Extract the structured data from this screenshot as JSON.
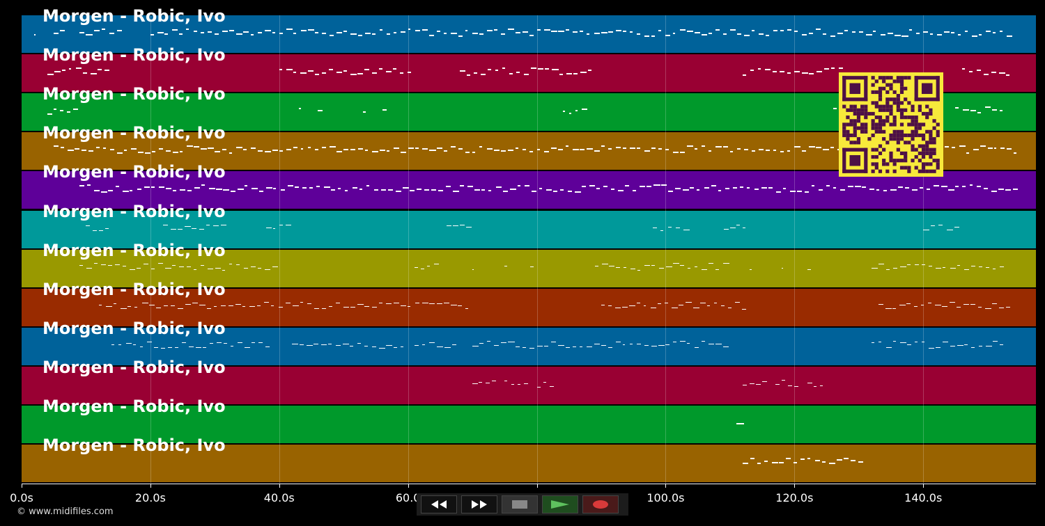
{
  "track_title": "Morgen - Robic, Ivo",
  "lanes": [
    {
      "title": "Morgen - Robic, Ivo",
      "color": "#00629a"
    },
    {
      "title": "Morgen - Robic, Ivo",
      "color": "#990033"
    },
    {
      "title": "Morgen - Robic, Ivo",
      "color": "#00992b"
    },
    {
      "title": "Morgen - Robic, Ivo",
      "color": "#996300"
    },
    {
      "title": "Morgen - Robic, Ivo",
      "color": "#5e0099"
    },
    {
      "title": "Morgen - Robic, Ivo",
      "color": "#00999a"
    },
    {
      "title": "Morgen - Robic, Ivo",
      "color": "#999900"
    },
    {
      "title": "Morgen - Robic, Ivo",
      "color": "#992b00"
    },
    {
      "title": "Morgen - Robic, Ivo",
      "color": "#00629a"
    },
    {
      "title": "Morgen - Robic, Ivo",
      "color": "#990033"
    },
    {
      "title": "Morgen - Robic, Ivo",
      "color": "#00992b"
    },
    {
      "title": "Morgen - Robic, Ivo",
      "color": "#996300"
    }
  ],
  "time_axis": {
    "max_seconds": 157.5,
    "ticks": [
      {
        "value": 0,
        "label": "0.0s"
      },
      {
        "value": 20,
        "label": "20.0s"
      },
      {
        "value": 40,
        "label": "40.0s"
      },
      {
        "value": 60,
        "label": "60.0"
      },
      {
        "value": 80,
        "label": "80.0"
      },
      {
        "value": 100,
        "label": "100.0s"
      },
      {
        "value": 120,
        "label": "120.0s"
      },
      {
        "value": 140,
        "label": "140.0s"
      }
    ]
  },
  "notes": [
    [
      [
        2,
        2.5
      ],
      [
        5,
        7
      ],
      [
        9,
        10
      ],
      [
        10,
        16
      ],
      [
        20,
        40
      ],
      [
        40,
        60
      ],
      [
        60,
        80
      ],
      [
        80,
        100
      ],
      [
        100,
        120
      ],
      [
        120,
        140
      ],
      [
        140,
        154
      ]
    ],
    [
      [
        4,
        14
      ],
      [
        40,
        61
      ],
      [
        68,
        89
      ],
      [
        112,
        128
      ],
      [
        146,
        154
      ]
    ],
    [
      [
        4,
        9
      ],
      [
        43,
        44
      ],
      [
        46,
        47
      ],
      [
        53,
        54
      ],
      [
        56,
        57
      ],
      [
        84,
        88
      ],
      [
        126,
        131
      ],
      [
        145,
        153
      ]
    ],
    [
      [
        5,
        30
      ],
      [
        30,
        60
      ],
      [
        60,
        90
      ],
      [
        90,
        120
      ],
      [
        120,
        150
      ],
      [
        150,
        155
      ]
    ],
    [
      [
        9,
        155
      ]
    ],
    [
      [
        10,
        14
      ],
      [
        22,
        32
      ],
      [
        38,
        42
      ],
      [
        66,
        70
      ],
      [
        98,
        104
      ],
      [
        109,
        113
      ],
      [
        140,
        146
      ]
    ],
    [
      [
        9,
        40
      ],
      [
        61,
        65
      ],
      [
        70,
        70.5
      ],
      [
        75,
        75.5
      ],
      [
        79,
        80
      ],
      [
        89,
        110
      ],
      [
        113,
        113.5
      ],
      [
        118,
        118.5
      ],
      [
        122,
        123
      ],
      [
        132,
        153
      ]
    ],
    [
      [
        12,
        70
      ],
      [
        90,
        113
      ],
      [
        133,
        154
      ]
    ],
    [
      [
        14,
        39
      ],
      [
        42,
        60
      ],
      [
        61,
        68
      ],
      [
        70,
        110
      ],
      [
        132,
        153
      ]
    ],
    [
      [
        70,
        74
      ],
      [
        75,
        79
      ],
      [
        80,
        83
      ],
      [
        112,
        116
      ],
      [
        117,
        121
      ],
      [
        122,
        125
      ]
    ],
    [
      [
        111,
        112.5
      ]
    ],
    [
      [
        112,
        131
      ]
    ]
  ],
  "copyright": "© www.midifiles.com",
  "controls": {
    "rewind_icon": "rewind-icon",
    "fast_forward_icon": "fast-forward-icon",
    "stop_icon": "stop-icon",
    "play_icon": "play-icon",
    "record_icon": "record-icon"
  },
  "colors": {
    "background": "#000000",
    "note": "#ffffff",
    "qr_background": "#f7e93b",
    "qr_module": "#4d1046",
    "play_green": "#5ec15e",
    "record_red": "#d93a3a"
  }
}
